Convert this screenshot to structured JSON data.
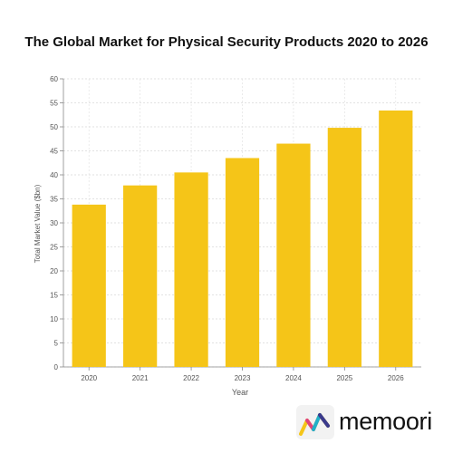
{
  "chart_data": {
    "type": "bar",
    "title": "The Global Market for Physical Security Products 2020 to 2026",
    "xlabel": "Year",
    "ylabel": "Total Market Value ($bn)",
    "categories": [
      "2020",
      "2021",
      "2022",
      "2023",
      "2024",
      "2025",
      "2026"
    ],
    "values": [
      33.8,
      37.8,
      40.5,
      43.5,
      46.5,
      49.8,
      53.4
    ],
    "ylim": [
      0,
      60
    ],
    "yticks": [
      0,
      5,
      10,
      15,
      20,
      25,
      30,
      35,
      40,
      45,
      50,
      55,
      60
    ],
    "grid": true,
    "bar_color": "#F5C518"
  },
  "brand": {
    "name": "memoori",
    "logo_icon": "memoori-logo-icon",
    "logo_colors": [
      "#F5C518",
      "#E0457B",
      "#21B0C9",
      "#3A3A8C"
    ]
  }
}
